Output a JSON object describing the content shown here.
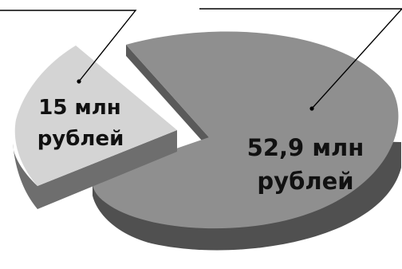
{
  "chart_data": {
    "type": "pie",
    "title": "",
    "slices": [
      {
        "label_line1": "52,9 млн",
        "label_line2": "рублей",
        "value": 52.9,
        "color": "#8f8f8f",
        "side_color": "#505050"
      },
      {
        "label_line1": "15 млн",
        "label_line2": "рублей",
        "value": 15,
        "color": "#d4d4d4",
        "side_color": "#6e6e6e",
        "exploded": true
      }
    ],
    "legend": "none",
    "style": "3d-exploded"
  }
}
